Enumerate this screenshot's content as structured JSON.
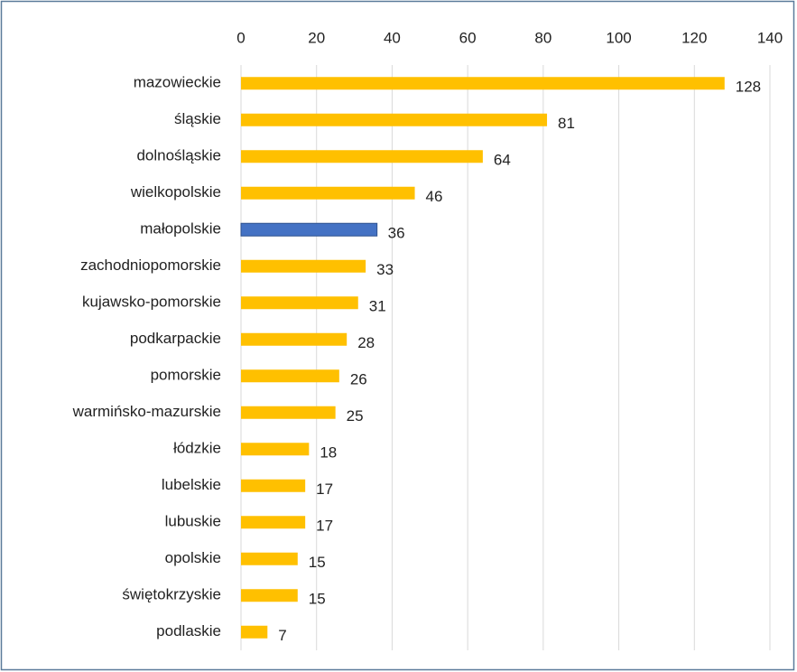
{
  "chart_data": {
    "type": "bar",
    "orientation": "horizontal",
    "categories": [
      "mazowieckie",
      "śląskie",
      "dolnośląskie",
      "wielkopolskie",
      "małopolskie",
      "zachodniopomorskie",
      "kujawsko-pomorskie",
      "podkarpackie",
      "pomorskie",
      "warmińsko-mazurskie",
      "łódzkie",
      "lubelskie",
      "lubuskie",
      "opolskie",
      "świętokrzyskie",
      "podlaskie"
    ],
    "values": [
      128,
      81,
      64,
      46,
      36,
      33,
      31,
      28,
      26,
      25,
      18,
      17,
      17,
      15,
      15,
      7
    ],
    "colors": [
      "#ffc000",
      "#ffc000",
      "#ffc000",
      "#ffc000",
      "#4472c4",
      "#ffc000",
      "#ffc000",
      "#ffc000",
      "#ffc000",
      "#ffc000",
      "#ffc000",
      "#ffc000",
      "#ffc000",
      "#ffc000",
      "#ffc000",
      "#ffc000"
    ],
    "xlim": [
      0,
      140
    ],
    "xticks": [
      0,
      20,
      40,
      60,
      80,
      100,
      120,
      140
    ],
    "grid": true,
    "xaxis_position": "top"
  }
}
